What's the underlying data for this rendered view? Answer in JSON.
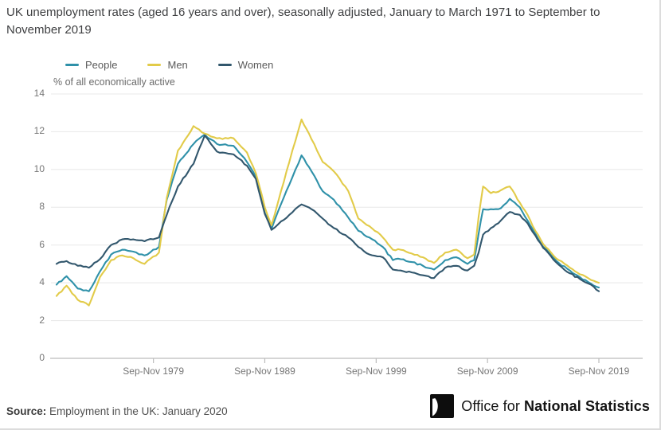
{
  "title": "UK unemployment rates (aged 16 years and over), seasonally adjusted, January to March 1971 to September to November 2019",
  "source": {
    "label": "Source:",
    "text": "Employment in the UK: January 2020"
  },
  "logo": {
    "text_light": "Office for ",
    "text_bold": "National Statistics"
  },
  "colors": {
    "people": "#2f91a9",
    "men": "#e2cb49",
    "women": "#32576d",
    "grid": "#e8e8e8",
    "axis": "#bcbcbc",
    "tick_text": "#767676",
    "title_text": "#3e3f41"
  },
  "chart_data": {
    "type": "line",
    "title": "UK unemployment rates (aged 16 years and over), seasonally adjusted, January to March 1971 to September to November 2019",
    "xlabel": "",
    "ylabel": "% of all economically active",
    "ylim": [
      0,
      14
    ],
    "yticks": [
      0,
      2,
      4,
      6,
      8,
      10,
      12,
      14
    ],
    "xlim": [
      1971.1,
      2019.8
    ],
    "xticks": [
      {
        "x": 1979.8,
        "label": "Sep-Nov 1979"
      },
      {
        "x": 1989.8,
        "label": "Sep-Nov 1989"
      },
      {
        "x": 1999.8,
        "label": "Sep-Nov 1999"
      },
      {
        "x": 2009.8,
        "label": "Sep-Nov 2009"
      },
      {
        "x": 2019.8,
        "label": "Sep-Nov 2019"
      }
    ],
    "grid": true,
    "legend_position": "top",
    "x": [
      1971.1,
      1972,
      1973,
      1974,
      1975,
      1976,
      1977,
      1978,
      1979,
      1980.3,
      1981,
      1982,
      1983.4,
      1984.4,
      1985.5,
      1987,
      1988.2,
      1989,
      1989.8,
      1990.4,
      1991,
      1992,
      1993.1,
      1994,
      1995,
      1996,
      1997.3,
      1998.2,
      1999.2,
      2000.4,
      2001.3,
      2002,
      2003,
      2004,
      2005,
      2006,
      2007,
      2008,
      2008.6,
      2009,
      2009.4,
      2010.1,
      2011,
      2011.8,
      2012.7,
      2013.4,
      2014.1,
      2014.8,
      2015.5,
      2016.2,
      2017.2,
      2018.1,
      2019.1,
      2019.8
    ],
    "series": [
      {
        "name": "People",
        "color": "#2f91a9",
        "values": [
          3.9,
          4.35,
          3.7,
          3.55,
          4.6,
          5.5,
          5.75,
          5.65,
          5.45,
          5.9,
          8.4,
          10.3,
          11.35,
          11.85,
          11.35,
          11.25,
          10.4,
          9.6,
          7.7,
          6.85,
          7.8,
          9.2,
          10.75,
          9.9,
          8.85,
          8.4,
          7.45,
          6.75,
          6.4,
          5.9,
          5.2,
          5.25,
          5.1,
          4.9,
          4.7,
          5.2,
          5.35,
          5.0,
          5.2,
          6.6,
          7.9,
          7.9,
          7.95,
          8.45,
          8.0,
          7.3,
          6.6,
          5.9,
          5.5,
          5.05,
          4.65,
          4.3,
          3.95,
          3.75
        ]
      },
      {
        "name": "Men",
        "color": "#e2cb49",
        "values": [
          3.3,
          3.85,
          3.1,
          2.8,
          4.3,
          5.2,
          5.45,
          5.3,
          5.0,
          5.6,
          8.5,
          11.0,
          12.3,
          11.9,
          11.65,
          11.65,
          10.9,
          9.8,
          8.0,
          7.05,
          8.3,
          10.4,
          12.65,
          11.6,
          10.4,
          9.9,
          8.85,
          7.4,
          7.0,
          6.4,
          5.75,
          5.75,
          5.55,
          5.35,
          5.05,
          5.6,
          5.75,
          5.3,
          5.5,
          7.5,
          9.1,
          8.75,
          8.9,
          9.1,
          8.25,
          7.6,
          6.75,
          6.05,
          5.6,
          5.2,
          4.8,
          4.45,
          4.15,
          4.0
        ]
      },
      {
        "name": "Women",
        "color": "#32576d",
        "values": [
          5.0,
          5.15,
          4.9,
          4.8,
          5.25,
          6.0,
          6.3,
          6.3,
          6.2,
          6.4,
          7.6,
          9.1,
          10.3,
          11.8,
          10.95,
          10.8,
          10.2,
          9.5,
          7.65,
          6.8,
          7.1,
          7.6,
          8.15,
          7.9,
          7.4,
          6.9,
          6.4,
          5.9,
          5.5,
          5.35,
          4.7,
          4.65,
          4.55,
          4.4,
          4.25,
          4.8,
          4.9,
          4.65,
          4.9,
          5.6,
          6.55,
          6.9,
          7.3,
          7.75,
          7.6,
          7.15,
          6.5,
          5.85,
          5.4,
          4.95,
          4.5,
          4.2,
          3.9,
          3.55
        ]
      }
    ]
  }
}
